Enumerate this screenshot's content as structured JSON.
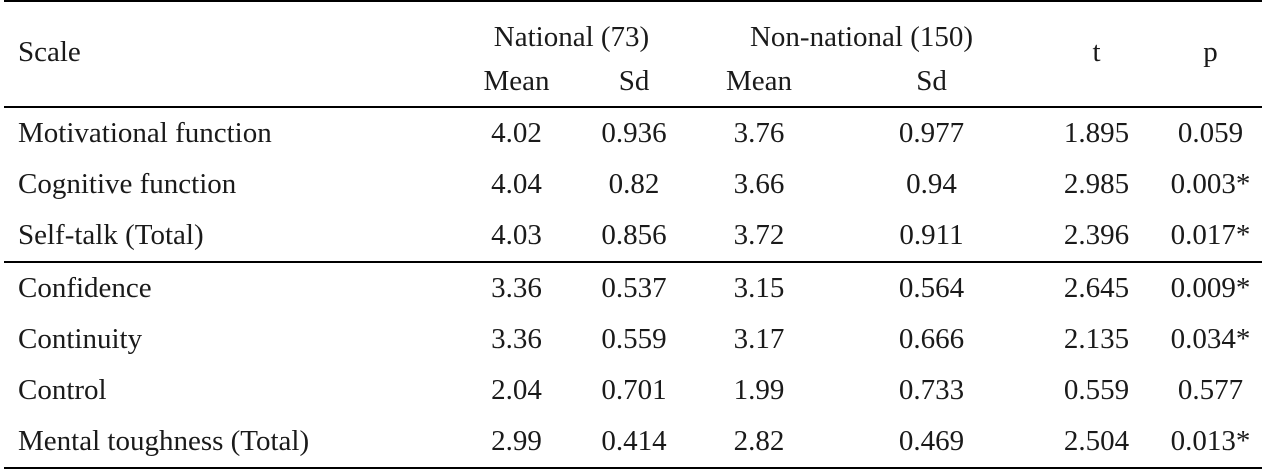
{
  "table": {
    "header": {
      "scale": "Scale",
      "group1": "National (73)",
      "group2": "Non-national (150)",
      "t": "t",
      "p": "p",
      "mean": "Mean",
      "sd": "Sd"
    },
    "rows": [
      {
        "scale": "Motivational function",
        "nat_mean": "4.02",
        "nat_sd": "0.936",
        "non_mean": "3.76",
        "non_sd": "0.977",
        "t": "1.895",
        "p": "0.059"
      },
      {
        "scale": "Cognitive function",
        "nat_mean": "4.04",
        "nat_sd": "0.82",
        "non_mean": "3.66",
        "non_sd": "0.94",
        "t": "2.985",
        "p": "0.003*"
      },
      {
        "scale": "Self-talk (Total)",
        "nat_mean": "4.03",
        "nat_sd": "0.856",
        "non_mean": "3.72",
        "non_sd": "0.911",
        "t": "2.396",
        "p": "0.017*"
      },
      {
        "scale": "Confidence",
        "nat_mean": "3.36",
        "nat_sd": "0.537",
        "non_mean": "3.15",
        "non_sd": "0.564",
        "t": "2.645",
        "p": "0.009*"
      },
      {
        "scale": "Continuity",
        "nat_mean": "3.36",
        "nat_sd": "0.559",
        "non_mean": "3.17",
        "non_sd": "0.666",
        "t": "2.135",
        "p": "0.034*"
      },
      {
        "scale": "Control",
        "nat_mean": "2.04",
        "nat_sd": "0.701",
        "non_mean": "1.99",
        "non_sd": "0.733",
        "t": "0.559",
        "p": "0.577"
      },
      {
        "scale": "Mental toughness (Total)",
        "nat_mean": "2.99",
        "nat_sd": "0.414",
        "non_mean": "2.82",
        "non_sd": "0.469",
        "t": "2.504",
        "p": "0.013*"
      }
    ]
  }
}
